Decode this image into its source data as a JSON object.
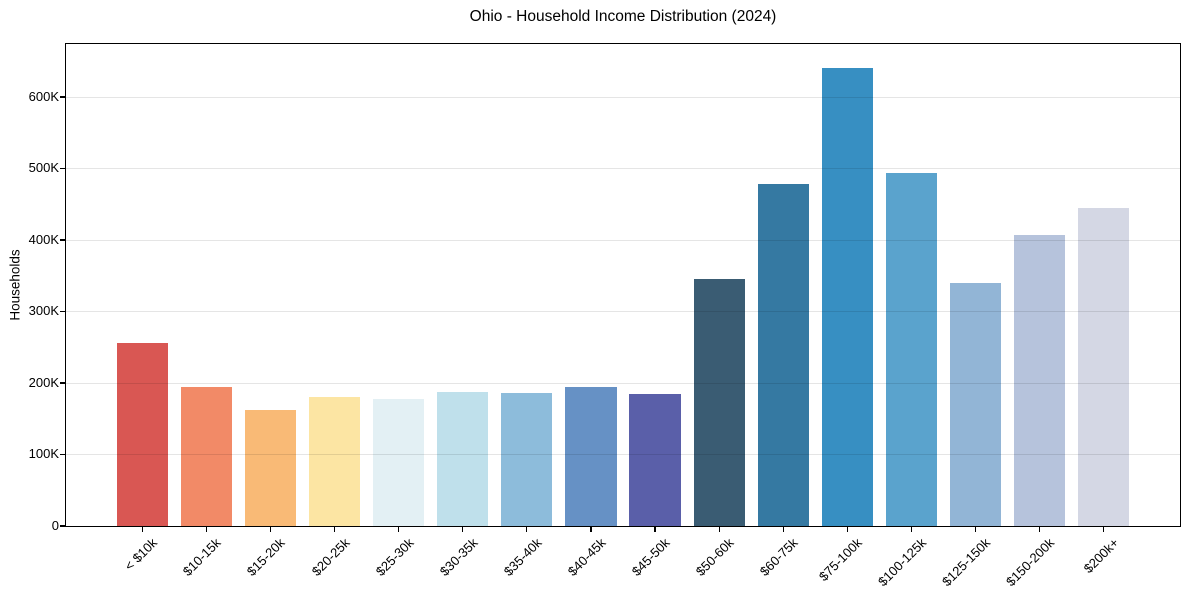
{
  "title": "Ohio - Household Income Distribution (2024)",
  "colors": {
    "background": "#ffffff",
    "spine": "#000000",
    "grid": "rgba(0,0,0,0.10)",
    "text": "#000000"
  },
  "chart_data": {
    "type": "bar",
    "title": "Ohio - Household Income Distribution (2024)",
    "xlabel": "",
    "ylabel": "Households",
    "categories": [
      "< $10k",
      "$10-15k",
      "$15-20k",
      "$20-25k",
      "$25-30k",
      "$30-35k",
      "$35-40k",
      "$40-45k",
      "$45-50k",
      "$50-60k",
      "$60-75k",
      "$75-100k",
      "$100-125k",
      "$125-150k",
      "$150-200k",
      "$200k+"
    ],
    "values": [
      256000,
      194000,
      162000,
      180000,
      177000,
      188000,
      186000,
      195000,
      184000,
      345000,
      478000,
      641000,
      494000,
      340000,
      407000,
      444000
    ],
    "bar_colors": [
      "#d95753",
      "#f28a67",
      "#f9ba76",
      "#fce5a3",
      "#e3f0f4",
      "#bfe0eb",
      "#8dbcdb",
      "#6691c5",
      "#5a5fa9",
      "#3a5c73",
      "#3579a2",
      "#378fc2",
      "#5aa3cd",
      "#92b5d6",
      "#b6c3dc",
      "#d4d7e4"
    ],
    "ytick_labels": [
      "0",
      "100K",
      "200K",
      "300K",
      "400K",
      "500K",
      "600K"
    ],
    "ytick_values": [
      0,
      100000,
      200000,
      300000,
      400000,
      500000,
      600000
    ],
    "ylim": [
      0,
      674000
    ],
    "grid": "horizontal, drawn over bars",
    "legend": "none",
    "x_tick_rotation_deg": 45
  }
}
